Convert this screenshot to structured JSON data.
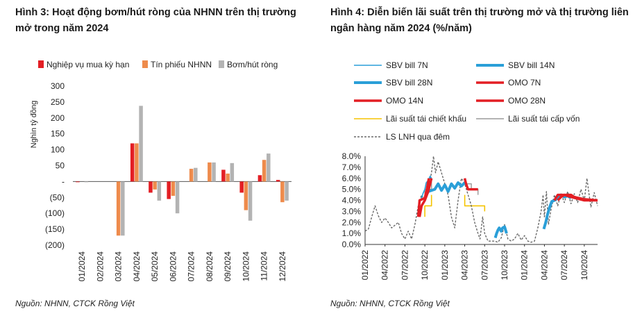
{
  "colors": {
    "red": "#e31e24",
    "orange": "#ee8b4c",
    "gray": "#b3b3b3",
    "blue_light": "#2a9fd8",
    "blue_dark": "#1a7fc0",
    "ref_yellow": "#f5c400",
    "ref_gray": "#9a9a9a",
    "dash_gray": "#6a6a6a"
  },
  "left": {
    "title": "Hình 3: Hoạt động bơm/hút ròng của NHNN trên thị trường mở trong năm 2024",
    "source": "Nguồn: NHNN, CTCK Rồng Việt"
  },
  "right": {
    "title": "Hình 4: Diễn biến lãi suất trên thị trường mở và thị trường liên ngân hàng năm 2024 (%/năm)",
    "source": "Nguồn: NHNN, CTCK Rồng Việt"
  },
  "chart_data": [
    {
      "type": "bar",
      "title": "Hình 3: Hoạt động bơm/hút ròng của NHNN trên thị trường mở trong năm 2024",
      "ylabel": "Nghìn tỷ đồng",
      "ylim": [
        -200,
        300
      ],
      "yticks": [
        300,
        250,
        200,
        150,
        100,
        50,
        0,
        -50,
        -100,
        -150,
        -200
      ],
      "ytick_labels": [
        "300",
        "250",
        "200",
        "150",
        "100",
        "50",
        "-",
        "(50)",
        "(100)",
        "(150)",
        "(200)"
      ],
      "categories": [
        "01/2024",
        "02/2024",
        "03/2024",
        "04/2024",
        "05/2024",
        "06/2024",
        "07/2024",
        "08/2024",
        "09/2024",
        "10/2024",
        "11/2024",
        "12/2024"
      ],
      "series": [
        {
          "name": "Nghiệp vụ mua kỳ hạn",
          "color": "#e31e24",
          "values": [
            -2,
            0,
            0,
            120,
            -35,
            -55,
            0,
            0,
            37,
            -35,
            20,
            5
          ]
        },
        {
          "name": "Tín phiếu NHNN",
          "color": "#ee8b4c",
          "values": [
            0,
            0,
            -170,
            120,
            -25,
            -45,
            40,
            60,
            25,
            -90,
            68,
            -65
          ]
        },
        {
          "name": "Bơm/hút ròng",
          "color": "#b3b3b3",
          "values": [
            -2,
            0,
            -170,
            238,
            -60,
            -100,
            43,
            60,
            58,
            -123,
            88,
            -60
          ]
        }
      ],
      "legend": "top"
    },
    {
      "type": "line",
      "title": "Hình 4: Diễn biến lãi suất trên thị trường mở và thị trường liên ngân hàng năm 2024 (%/năm)",
      "x_start": "01/2022",
      "x_end": "12/2024",
      "xtick_labels": [
        "01/2022",
        "04/2022",
        "07/2022",
        "10/2022",
        "01/2023",
        "04/2023",
        "07/2023",
        "10/2023",
        "01/2024",
        "04/2024",
        "07/2024",
        "10/2024"
      ],
      "ylim": [
        0,
        8
      ],
      "ytick_labels": [
        "0.0%",
        "1.0%",
        "2.0%",
        "3.0%",
        "4.0%",
        "5.0%",
        "6.0%",
        "7.0%",
        "8.0%"
      ],
      "legend": "top",
      "series": [
        {
          "name": "SBV bill 7N",
          "style": "thin-blue",
          "points": [
            [
              8.4,
              4.0
            ],
            [
              8.7,
              4.6
            ],
            [
              9.0,
              5.0
            ],
            [
              9.2,
              5.6
            ],
            [
              9.5,
              5.8
            ],
            [
              9.8,
              6.2
            ],
            [
              10.0,
              6.0
            ],
            [
              15.0,
              6.0
            ]
          ]
        },
        {
          "name": "SBV bill 14N",
          "style": "thick-blue",
          "points": [
            [
              19.6,
              0.6
            ],
            [
              19.8,
              1.0
            ],
            [
              20.0,
              1.3
            ],
            [
              20.2,
              1.5
            ],
            [
              20.5,
              1.2
            ],
            [
              20.7,
              1.5
            ],
            [
              21.0,
              1.6
            ],
            [
              21.3,
              1.0
            ]
          ]
        },
        {
          "name": "SBV bill 28N",
          "style": "thick-blue",
          "points": [
            [
              9.0,
              4.2
            ],
            [
              9.5,
              4.8
            ],
            [
              10.5,
              5.0
            ],
            [
              11.0,
              5.5
            ],
            [
              11.5,
              4.9
            ],
            [
              12.0,
              5.4
            ],
            [
              12.5,
              4.8
            ],
            [
              13.0,
              5.5
            ],
            [
              13.5,
              5.1
            ],
            [
              14.0,
              5.6
            ],
            [
              14.5,
              5.3
            ],
            [
              15.0,
              5.6
            ],
            [
              26.9,
              1.4
            ],
            [
              27.2,
              2.0
            ],
            [
              27.5,
              2.8
            ],
            [
              27.8,
              3.4
            ],
            [
              28.1,
              3.9
            ],
            [
              28.5,
              4.0
            ],
            [
              29.0,
              4.2
            ],
            [
              29.5,
              4.5
            ],
            [
              30.0,
              4.3
            ],
            [
              30.5,
              4.4
            ],
            [
              31.0,
              4.2
            ]
          ]
        },
        {
          "name": "OMO 7N",
          "style": "thick-red",
          "points": [
            [
              0.0,
              2.5
            ],
            [
              8.2,
              2.5
            ],
            [
              8.5,
              3.5
            ],
            [
              9.0,
              4.0
            ],
            [
              9.5,
              4.8
            ],
            [
              10.0,
              6.0
            ],
            [
              15.0,
              6.0
            ],
            [
              15.2,
              5.5
            ],
            [
              15.5,
              5.0
            ],
            [
              17.0,
              5.0
            ],
            [
              29.0,
              4.0
            ],
            [
              29.5,
              4.3
            ],
            [
              30.0,
              4.5
            ],
            [
              31.0,
              4.3
            ],
            [
              33.0,
              4.0
            ],
            [
              35.0,
              4.0
            ]
          ]
        },
        {
          "name": "OMO 14N",
          "style": "thick-red",
          "points": [
            [
              0.0,
              2.5
            ],
            [
              8.0,
              2.5
            ],
            [
              8.2,
              4.0
            ],
            [
              9.0,
              4.2
            ],
            [
              9.3,
              5.0
            ],
            [
              9.6,
              6.0
            ],
            [
              15.0,
              6.0
            ]
          ]
        },
        {
          "name": "OMO 28N",
          "style": "thick-red",
          "points": [
            [
              28.5,
              4.0
            ],
            [
              29.0,
              4.5
            ],
            [
              31.0,
              4.5
            ],
            [
              31.5,
              4.3
            ],
            [
              33.0,
              4.1
            ],
            [
              35.0,
              4.0
            ]
          ]
        },
        {
          "name": "Lãi suất tái chiết khấu",
          "style": "thin-yellow",
          "points": [
            [
              0.0,
              2.5
            ],
            [
              9.0,
              2.5
            ],
            [
              9.0,
              3.5
            ],
            [
              10.0,
              3.5
            ],
            [
              10.0,
              4.5
            ],
            [
              15.0,
              4.5
            ],
            [
              15.0,
              3.5
            ],
            [
              18.0,
              3.5
            ],
            [
              18.0,
              3.0
            ],
            [
              35.0,
              3.0
            ]
          ]
        },
        {
          "name": "Lãi suất tái cấp vốn",
          "style": "thin-gray",
          "points": [
            [
              0.0,
              4.0
            ],
            [
              9.0,
              4.0
            ],
            [
              9.0,
              5.0
            ],
            [
              10.0,
              5.0
            ],
            [
              10.0,
              6.0
            ],
            [
              15.0,
              6.0
            ],
            [
              15.0,
              5.5
            ],
            [
              16.0,
              5.5
            ],
            [
              16.0,
              5.0
            ],
            [
              17.0,
              5.0
            ],
            [
              17.0,
              4.5
            ],
            [
              35.0,
              4.5
            ]
          ]
        },
        {
          "name": "LS LNH qua đêm",
          "style": "dashed-gray",
          "points": [
            [
              0.0,
              1.2
            ],
            [
              0.5,
              1.4
            ],
            [
              1.0,
              2.5
            ],
            [
              1.5,
              3.5
            ],
            [
              2.0,
              2.6
            ],
            [
              2.5,
              2.0
            ],
            [
              3.0,
              2.4
            ],
            [
              3.5,
              2.0
            ],
            [
              4.0,
              1.5
            ],
            [
              5.0,
              2.0
            ],
            [
              5.5,
              1.0
            ],
            [
              6.0,
              0.5
            ],
            [
              6.5,
              1.2
            ],
            [
              7.0,
              0.5
            ],
            [
              7.5,
              1.8
            ],
            [
              8.0,
              3.5
            ],
            [
              8.5,
              4.5
            ],
            [
              9.0,
              4.0
            ],
            [
              9.5,
              5.0
            ],
            [
              10.0,
              6.5
            ],
            [
              10.3,
              8.0
            ],
            [
              10.6,
              6.5
            ],
            [
              11.0,
              7.5
            ],
            [
              11.5,
              6.5
            ],
            [
              12.0,
              5.5
            ],
            [
              12.5,
              4.5
            ],
            [
              13.0,
              2.5
            ],
            [
              13.5,
              1.5
            ],
            [
              14.0,
              4.0
            ],
            [
              14.5,
              6.0
            ],
            [
              15.0,
              5.5
            ],
            [
              15.5,
              4.5
            ],
            [
              16.0,
              3.5
            ],
            [
              16.5,
              2.0
            ],
            [
              17.0,
              1.0
            ],
            [
              17.3,
              0.5
            ],
            [
              17.7,
              2.5
            ],
            [
              18.0,
              1.0
            ],
            [
              18.5,
              0.3
            ],
            [
              19.5,
              0.3
            ],
            [
              20.0,
              0.2
            ],
            [
              20.5,
              0.6
            ],
            [
              21.0,
              1.8
            ],
            [
              21.5,
              0.5
            ],
            [
              22.0,
              0.3
            ],
            [
              22.5,
              0.5
            ],
            [
              23.0,
              1.0
            ],
            [
              23.5,
              0.4
            ],
            [
              24.0,
              0.8
            ],
            [
              24.5,
              0.3
            ],
            [
              25.0,
              0.2
            ],
            [
              25.5,
              0.3
            ],
            [
              26.0,
              1.5
            ],
            [
              26.5,
              3.0
            ],
            [
              26.8,
              4.5
            ],
            [
              27.0,
              2.5
            ],
            [
              27.3,
              4.8
            ],
            [
              27.6,
              1.8
            ],
            [
              28.0,
              3.2
            ],
            [
              28.5,
              4.5
            ],
            [
              29.0,
              3.5
            ],
            [
              29.5,
              4.6
            ],
            [
              30.0,
              3.8
            ],
            [
              30.5,
              4.8
            ],
            [
              31.0,
              3.7
            ],
            [
              31.5,
              4.6
            ],
            [
              32.0,
              3.8
            ],
            [
              32.5,
              5.0
            ],
            [
              33.0,
              4.0
            ],
            [
              33.4,
              6.0
            ],
            [
              33.7,
              4.6
            ],
            [
              34.0,
              3.4
            ],
            [
              34.5,
              4.7
            ],
            [
              35.0,
              3.5
            ]
          ]
        }
      ]
    }
  ]
}
